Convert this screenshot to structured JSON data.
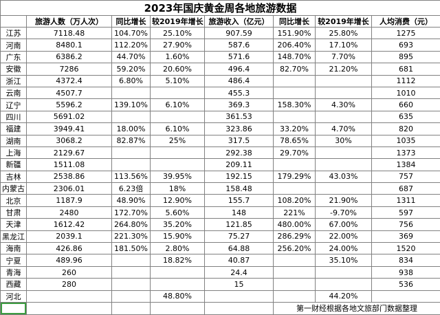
{
  "title": "2023年国庆黄金周各地旅游数据",
  "table": {
    "columns": [
      "",
      "旅游人数（万人次）",
      "同比增长",
      "较2019年增长",
      "旅游收入（亿元）",
      "同比增长",
      "较2019年增长",
      "人均消费（元）"
    ],
    "rows": [
      [
        "江苏",
        "7118.48",
        "104.70%",
        "25.10%",
        "907.59",
        "151.90%",
        "25.80%",
        "1275"
      ],
      [
        "河南",
        "8480.1",
        "112.20%",
        "27.90%",
        "587.6",
        "206.40%",
        "17.10%",
        "693"
      ],
      [
        "广东",
        "6386.2",
        "44.70%",
        "1.60%",
        "571.6",
        "148.70%",
        "7.70%",
        "895"
      ],
      [
        "安徽",
        "7286",
        "59.20%",
        "20.60%",
        "496.4",
        "82.70%",
        "21.20%",
        "681"
      ],
      [
        "浙江",
        "4372.4",
        "6.80%",
        "5.10%",
        "486.4",
        "",
        "",
        "1112"
      ],
      [
        "云南",
        "4507.7",
        "",
        "",
        "455.3",
        "",
        "",
        "1010"
      ],
      [
        "辽宁",
        "5596.2",
        "139.10%",
        "6.10%",
        "369.3",
        "158.30%",
        "4.30%",
        "660"
      ],
      [
        "四川",
        "5691.02",
        "",
        "",
        "361.53",
        "",
        "",
        "635"
      ],
      [
        "福建",
        "3949.41",
        "18.00%",
        "6.10%",
        "323.86",
        "33.20%",
        "4.70%",
        "820"
      ],
      [
        "湖南",
        "3068.2",
        "82.87%",
        "25%",
        "317.5",
        "78.65%",
        "30%",
        "1035"
      ],
      [
        "上海",
        "2129.67",
        "",
        "",
        "292.38",
        "29.70%",
        "",
        "1373"
      ],
      [
        "新疆",
        "1511.08",
        "",
        "",
        "209.11",
        "",
        "",
        "1384"
      ],
      [
        "吉林",
        "2538.86",
        "113.56%",
        "39.95%",
        "192.15",
        "179.29%",
        "43.03%",
        "757"
      ],
      [
        "内蒙古",
        "2306.01",
        "6.23倍",
        "18%",
        "158.48",
        "",
        "",
        "687"
      ],
      [
        "北京",
        "1187.9",
        "48.90%",
        "12.90%",
        "155.7",
        "108.20%",
        "21.90%",
        "1311"
      ],
      [
        "甘肃",
        "2480",
        "172.70%",
        "5.60%",
        "148",
        "221%",
        "-9.70%",
        "597"
      ],
      [
        "天津",
        "1612.42",
        "264.80%",
        "35.20%",
        "121.85",
        "480.00%",
        "67.00%",
        "756"
      ],
      [
        "黑龙江",
        "2039.1",
        "221.30%",
        "15.90%",
        "75.27",
        "286.29%",
        "22.00%",
        "369"
      ],
      [
        "海南",
        "426.86",
        "181.50%",
        "2.80%",
        "64.88",
        "256.20%",
        "24.00%",
        "1520"
      ],
      [
        "宁夏",
        "489.96",
        "",
        "18.82%",
        "40.87",
        "",
        "35.10%",
        "834"
      ],
      [
        "青海",
        "260",
        "",
        "",
        "24.4",
        "",
        "",
        "938"
      ],
      [
        "西藏",
        "280",
        "",
        "",
        "15",
        "",
        "",
        "536"
      ],
      [
        "河北",
        "",
        "",
        "48.80%",
        "",
        "",
        "44.20%",
        ""
      ]
    ],
    "source_note": "第一财经根据各地文旅部门数据整理"
  },
  "colors": {
    "grid": "#808080",
    "selection_border": "#3c9c40",
    "text": "#000000",
    "background": "#ffffff"
  }
}
